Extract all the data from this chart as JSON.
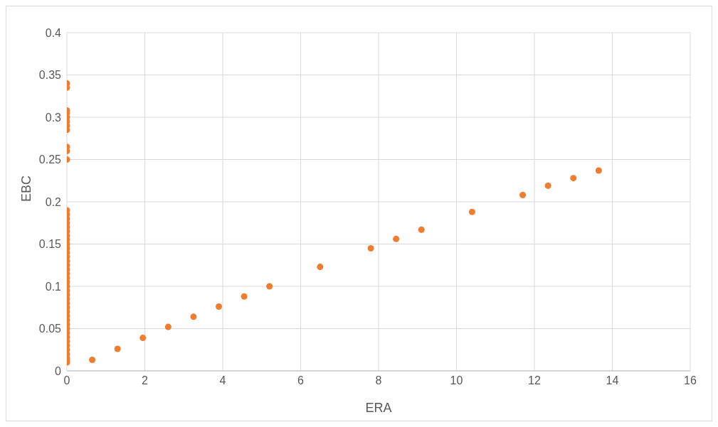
{
  "chart_data": {
    "type": "scatter",
    "xlabel": "ERA",
    "ylabel": "EBC",
    "xlim": [
      0,
      16
    ],
    "xticks": [
      0,
      2,
      4,
      6,
      8,
      10,
      12,
      14,
      16
    ],
    "ylim": [
      0,
      0.4
    ],
    "yticks": [
      0,
      0.05,
      0.1,
      0.15,
      0.2,
      0.25,
      0.3,
      0.35,
      0.4
    ],
    "grid": true,
    "marker": "circle",
    "series": [
      {
        "color": "#ed7d31",
        "x": [
          0,
          0,
          0,
          0,
          0,
          0,
          0,
          0,
          0,
          0,
          0,
          0,
          0,
          0,
          0,
          0,
          0,
          0,
          0,
          0,
          0,
          0,
          0,
          0,
          0,
          0,
          0,
          0,
          0,
          0,
          0,
          0,
          0,
          0,
          0,
          0,
          0,
          0,
          0,
          0,
          0,
          0,
          0,
          0,
          0,
          0,
          0,
          0,
          0,
          0.65,
          1.3,
          1.95,
          2.6,
          3.25,
          3.9,
          4.55,
          5.2,
          6.5,
          7.8,
          8.45,
          9.1,
          10.4,
          11.7,
          12.35,
          13,
          13.65
        ],
        "values": [
          0.015,
          0.02,
          0.025,
          0.03,
          0.035,
          0.04,
          0.045,
          0.05,
          0.055,
          0.06,
          0.065,
          0.07,
          0.075,
          0.08,
          0.085,
          0.09,
          0.095,
          0.1,
          0.105,
          0.11,
          0.115,
          0.12,
          0.125,
          0.13,
          0.135,
          0.14,
          0.145,
          0.15,
          0.155,
          0.16,
          0.165,
          0.17,
          0.175,
          0.18,
          0.185,
          0.19,
          0.25,
          0.26,
          0.265,
          0.285,
          0.29,
          0.295,
          0.3,
          0.305,
          0.308,
          0.335,
          0.34,
          0.01,
          0.012,
          0.013,
          0.026,
          0.039,
          0.052,
          0.064,
          0.076,
          0.088,
          0.1,
          0.123,
          0.145,
          0.156,
          0.167,
          0.188,
          0.208,
          0.219,
          0.228,
          0.237
        ]
      }
    ]
  }
}
